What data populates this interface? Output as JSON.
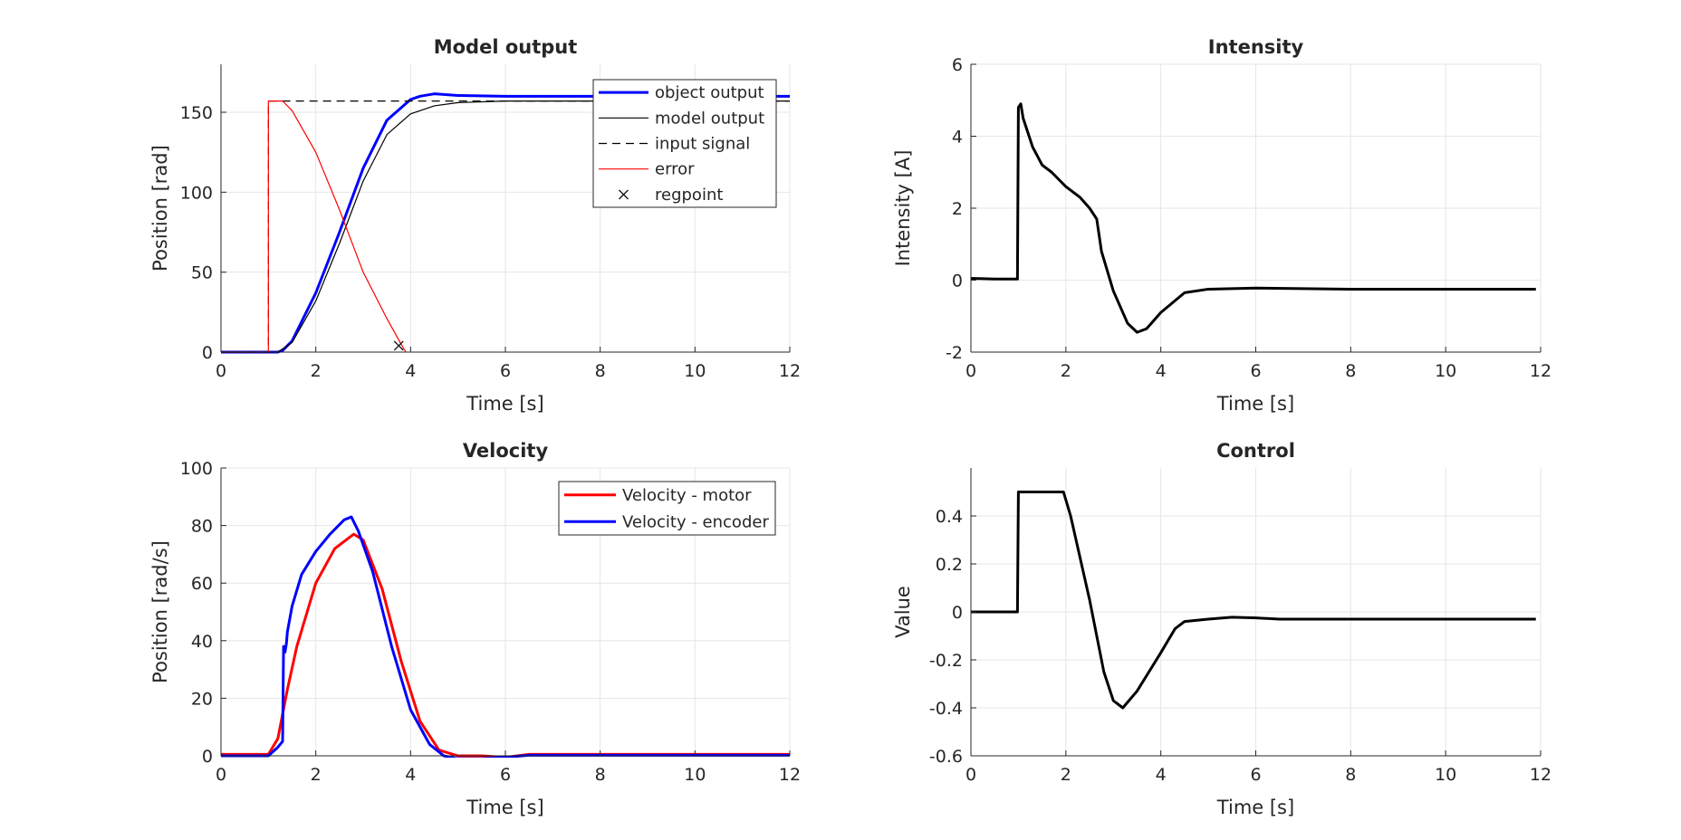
{
  "chart_data": [
    {
      "type": "line",
      "title": "Model output",
      "xlabel": "Time [s]",
      "ylabel": "Position [rad]",
      "xlim": [
        0,
        12
      ],
      "ylim": [
        0,
        180
      ],
      "xticks": [
        0,
        2,
        4,
        6,
        8,
        10,
        12
      ],
      "yticks": [
        0,
        50,
        100,
        150
      ],
      "grid": true,
      "legend": "top-right",
      "series": [
        {
          "name": "object output",
          "color": "#0000ff",
          "style": "solid-thick",
          "step": false,
          "x": [
            0,
            1.2,
            1.3,
            1.5,
            2.0,
            2.5,
            3.0,
            3.5,
            4.0,
            4.2,
            4.5,
            5.0,
            6.0,
            12
          ],
          "y": [
            0,
            0,
            1,
            7,
            37,
            75,
            115,
            145,
            158,
            160,
            161.5,
            160.5,
            160,
            160
          ]
        },
        {
          "name": "model output",
          "color": "#000000",
          "style": "solid-thin",
          "step": false,
          "x": [
            0,
            1.2,
            1.5,
            2.0,
            2.5,
            3.0,
            3.5,
            4.0,
            4.5,
            5.0,
            6.0,
            8.0,
            12
          ],
          "y": [
            0,
            0,
            6,
            32,
            68,
            107,
            136,
            149,
            154,
            156,
            157,
            157,
            157
          ]
        },
        {
          "name": "input signal",
          "color": "#000000",
          "style": "dashed",
          "step": false,
          "x": [
            0,
            1.0,
            1.0,
            12
          ],
          "y": [
            0,
            0,
            157,
            157
          ]
        },
        {
          "name": "error",
          "color": "#ff0000",
          "style": "solid-thin",
          "step": false,
          "x": [
            0,
            1.0,
            1.0,
            1.3,
            1.5,
            2.0,
            2.5,
            3.0,
            3.5,
            3.8,
            3.9
          ],
          "y": [
            0,
            0,
            157,
            157,
            151,
            125,
            89,
            50,
            21,
            5,
            0
          ]
        },
        {
          "name": "regpoint",
          "color": "#000000",
          "style": "marker-x",
          "step": false,
          "x": [
            3.75
          ],
          "y": [
            4
          ]
        }
      ]
    },
    {
      "type": "line",
      "title": "Intensity",
      "xlabel": "Time [s]",
      "ylabel": "Intensity [A]",
      "xlim": [
        0,
        12
      ],
      "ylim": [
        -2,
        6
      ],
      "xticks": [
        0,
        2,
        4,
        6,
        8,
        10,
        12
      ],
      "yticks": [
        -2,
        0,
        2,
        4,
        6
      ],
      "grid": true,
      "series": [
        {
          "color": "#000000",
          "style": "solid-thick",
          "x": [
            0,
            0.5,
            0.98,
            1.0,
            1.05,
            1.1,
            1.2,
            1.3,
            1.5,
            1.7,
            2.0,
            2.3,
            2.5,
            2.65,
            2.75,
            3.0,
            3.3,
            3.5,
            3.7,
            4.0,
            4.5,
            5.0,
            6.0,
            8.0,
            10.0,
            11.9
          ],
          "y": [
            0.05,
            0.03,
            0.03,
            4.8,
            4.9,
            4.5,
            4.1,
            3.7,
            3.2,
            3.0,
            2.6,
            2.3,
            2.0,
            1.7,
            0.8,
            -0.3,
            -1.2,
            -1.45,
            -1.35,
            -0.9,
            -0.35,
            -0.25,
            -0.22,
            -0.25,
            -0.25,
            -0.25
          ]
        }
      ]
    },
    {
      "type": "line",
      "title": "Velocity",
      "xlabel": "Time [s]",
      "ylabel": "Position [rad/s]",
      "xlim": [
        0,
        12
      ],
      "ylim": [
        0,
        100
      ],
      "xticks": [
        0,
        2,
        4,
        6,
        8,
        10,
        12
      ],
      "yticks": [
        0,
        20,
        40,
        60,
        80,
        100
      ],
      "grid": true,
      "legend": "top-right",
      "series": [
        {
          "name": "Velocity - motor",
          "color": "#ff0000",
          "style": "solid-thick",
          "x": [
            0,
            1.0,
            1.2,
            1.4,
            1.6,
            2.0,
            2.4,
            2.8,
            3.0,
            3.4,
            3.8,
            4.2,
            4.6,
            5.0,
            5.5,
            6.0,
            6.5,
            12
          ],
          "y": [
            0.5,
            0.5,
            6,
            23,
            38,
            60,
            72,
            77,
            75,
            58,
            33,
            12,
            2,
            0,
            0,
            -0.5,
            0.5,
            0.5
          ]
        },
        {
          "name": "Velocity - encoder",
          "color": "#0000ff",
          "style": "solid-thick",
          "x": [
            0,
            1.0,
            1.2,
            1.3,
            1.32,
            1.35,
            1.38,
            1.4,
            1.5,
            1.7,
            2.0,
            2.3,
            2.6,
            2.75,
            2.9,
            3.2,
            3.6,
            4.0,
            4.4,
            4.7,
            5.0,
            5.5,
            6.0,
            6.5,
            12
          ],
          "y": [
            0,
            0,
            3,
            5,
            38,
            36,
            39,
            43,
            52,
            63,
            71,
            77,
            82,
            83,
            78,
            64,
            38,
            16,
            4,
            0,
            -1,
            -1,
            -0.5,
            0.2,
            0.2
          ]
        }
      ]
    },
    {
      "type": "line",
      "title": "Control",
      "xlabel": "Time [s]",
      "ylabel": "Value",
      "xlim": [
        0,
        12
      ],
      "ylim": [
        -0.6,
        0.6
      ],
      "xticks": [
        0,
        2,
        4,
        6,
        8,
        10,
        12
      ],
      "yticks": [
        -0.6,
        -0.4,
        -0.2,
        0,
        0.2,
        0.4
      ],
      "grid": true,
      "series": [
        {
          "color": "#000000",
          "style": "solid-thick",
          "x": [
            0,
            0.98,
            1.0,
            1.95,
            2.1,
            2.5,
            2.8,
            3.0,
            3.2,
            3.5,
            4.0,
            4.3,
            4.5,
            5.0,
            5.5,
            6.0,
            6.5,
            11.9
          ],
          "y": [
            0,
            0,
            0.5,
            0.5,
            0.4,
            0.05,
            -0.25,
            -0.37,
            -0.4,
            -0.33,
            -0.17,
            -0.07,
            -0.04,
            -0.03,
            -0.022,
            -0.025,
            -0.03,
            -0.03
          ]
        }
      ]
    }
  ]
}
